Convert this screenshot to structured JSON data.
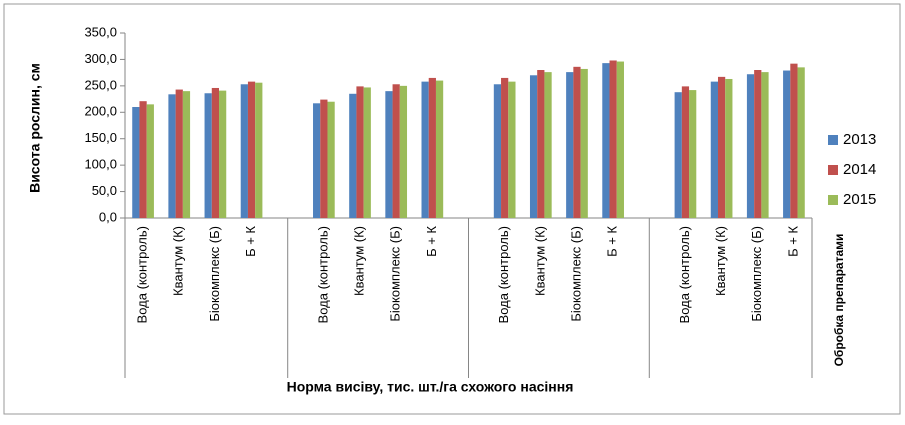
{
  "chart_data": {
    "type": "bar",
    "y_label": "Висота рослин, см",
    "x_label": "Норма висіву, тис. шт./га схожого насіння",
    "secondary_label": "Обробка препаратами",
    "categories": [
      "Вода (контроль)",
      "Квантум  (К)",
      "Біокомплекс (Б)",
      "Б + К",
      null,
      "Вода (контроль)",
      "Квантум  (К)",
      "Біокомплекс (Б)",
      "Б + К",
      null,
      "Вода (контроль)",
      "Квантум  (К)",
      "Біокомплекс (Б)",
      "Б + К",
      null,
      "Вода (контроль)",
      "Квантум  (К)",
      "Біокомплекс (Б)",
      "Б + К"
    ],
    "series": [
      {
        "name": "2013",
        "color": "#4f81bd",
        "values": [
          210,
          234,
          236,
          253,
          null,
          217,
          235,
          240,
          258,
          null,
          253,
          270,
          276,
          293,
          null,
          238,
          258,
          272,
          279
        ]
      },
      {
        "name": "2014",
        "color": "#c0504d",
        "values": [
          221,
          243,
          246,
          258,
          null,
          224,
          249,
          253,
          265,
          null,
          265,
          280,
          286,
          298,
          null,
          249,
          267,
          280,
          292
        ]
      },
      {
        "name": "2015",
        "color": "#9bbb59",
        "values": [
          215,
          240,
          241,
          256,
          null,
          220,
          247,
          250,
          260,
          null,
          258,
          276,
          282,
          296,
          null,
          242,
          263,
          276,
          285
        ]
      }
    ],
    "ylim": [
      0,
      350
    ],
    "yticks": [
      {
        "value": 0,
        "label": "0,0"
      },
      {
        "value": 50,
        "label": "50,0"
      },
      {
        "value": 100,
        "label": "100,0"
      },
      {
        "value": 150,
        "label": "150,0"
      },
      {
        "value": 200,
        "label": "200,0"
      },
      {
        "value": 250,
        "label": "250,0"
      },
      {
        "value": 300,
        "label": "300,0"
      },
      {
        "value": 350,
        "label": "350,0"
      }
    ],
    "grid": false,
    "legend": "right"
  }
}
